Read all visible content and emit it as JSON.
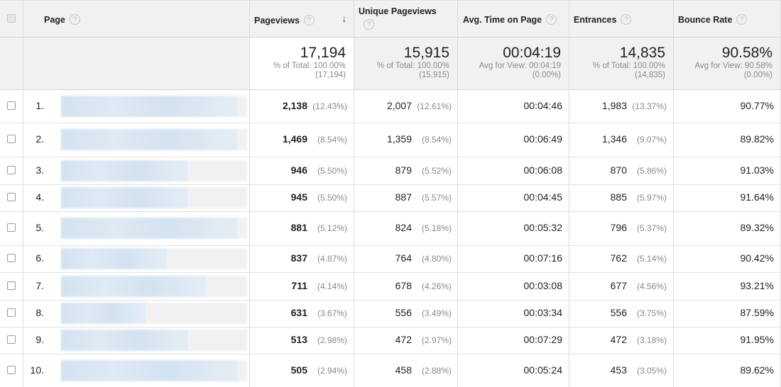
{
  "header": {
    "page_label": "Page",
    "pageviews_label": "Pageviews",
    "unique_label": "Unique Pageviews",
    "avgtime_label": "Avg. Time on Page",
    "entrances_label": "Entrances",
    "bounce_label": "Bounce Rate",
    "help_glyph": "?",
    "sort_glyph": "↓"
  },
  "summary": {
    "pageviews": {
      "value": "17,194",
      "line1": "% of Total: 100.00%",
      "line2": "(17,194)"
    },
    "unique": {
      "value": "15,915",
      "line1": "% of Total: 100.00%",
      "line2": "(15,915)"
    },
    "avgtime": {
      "value": "00:04:19",
      "line1": "Avg for View: 00:04:19",
      "line2": "(0.00%)"
    },
    "entrances": {
      "value": "14,835",
      "line1": "% of Total: 100.00%",
      "line2": "(14,835)"
    },
    "bounce": {
      "value": "90.58%",
      "line1": "Avg for View: 90.58%",
      "line2": "(0.00%)"
    }
  },
  "rows": [
    {
      "rank": "1.",
      "pv": "2,138",
      "pv_pct": "(12.43%)",
      "upv": "2,007",
      "upv_pct": "(12.61%)",
      "time": "00:04:46",
      "ent": "1,983",
      "ent_pct": "(13.37%)",
      "bounce": "90.77%"
    },
    {
      "rank": "2.",
      "pv": "1,469",
      "pv_pct": "(8.54%)",
      "upv": "1,359",
      "upv_pct": "(8.54%)",
      "time": "00:06:49",
      "ent": "1,346",
      "ent_pct": "(9.07%)",
      "bounce": "89.82%"
    },
    {
      "rank": "3.",
      "pv": "946",
      "pv_pct": "(5.50%)",
      "upv": "879",
      "upv_pct": "(5.52%)",
      "time": "00:06:08",
      "ent": "870",
      "ent_pct": "(5.86%)",
      "bounce": "91.03%"
    },
    {
      "rank": "4.",
      "pv": "945",
      "pv_pct": "(5.50%)",
      "upv": "887",
      "upv_pct": "(5.57%)",
      "time": "00:04:45",
      "ent": "885",
      "ent_pct": "(5.97%)",
      "bounce": "91.64%"
    },
    {
      "rank": "5.",
      "pv": "881",
      "pv_pct": "(5.12%)",
      "upv": "824",
      "upv_pct": "(5.18%)",
      "time": "00:05:32",
      "ent": "796",
      "ent_pct": "(5.37%)",
      "bounce": "89.32%"
    },
    {
      "rank": "6.",
      "pv": "837",
      "pv_pct": "(4.87%)",
      "upv": "764",
      "upv_pct": "(4.80%)",
      "time": "00:07:16",
      "ent": "762",
      "ent_pct": "(5.14%)",
      "bounce": "90.42%"
    },
    {
      "rank": "7.",
      "pv": "711",
      "pv_pct": "(4.14%)",
      "upv": "678",
      "upv_pct": "(4.26%)",
      "time": "00:03:08",
      "ent": "677",
      "ent_pct": "(4.56%)",
      "bounce": "93.21%"
    },
    {
      "rank": "8.",
      "pv": "631",
      "pv_pct": "(3.67%)",
      "upv": "556",
      "upv_pct": "(3.49%)",
      "time": "00:03:34",
      "ent": "556",
      "ent_pct": "(3.75%)",
      "bounce": "87.59%"
    },
    {
      "rank": "9.",
      "pv": "513",
      "pv_pct": "(2.98%)",
      "upv": "472",
      "upv_pct": "(2.97%)",
      "time": "00:07:29",
      "ent": "472",
      "ent_pct": "(3.18%)",
      "bounce": "91.95%"
    },
    {
      "rank": "10.",
      "pv": "505",
      "pv_pct": "(2.94%)",
      "upv": "458",
      "upv_pct": "(2.88%)",
      "time": "00:05:24",
      "ent": "453",
      "ent_pct": "(3.05%)",
      "bounce": "89.62%"
    }
  ],
  "colors": {
    "header_bg": "#f1f1f1",
    "grid_line": "#dcdcdc",
    "muted_text": "#8a8a8a",
    "blur_blue": "#cfe0ef",
    "blur_gray": "#e9e9e9"
  }
}
